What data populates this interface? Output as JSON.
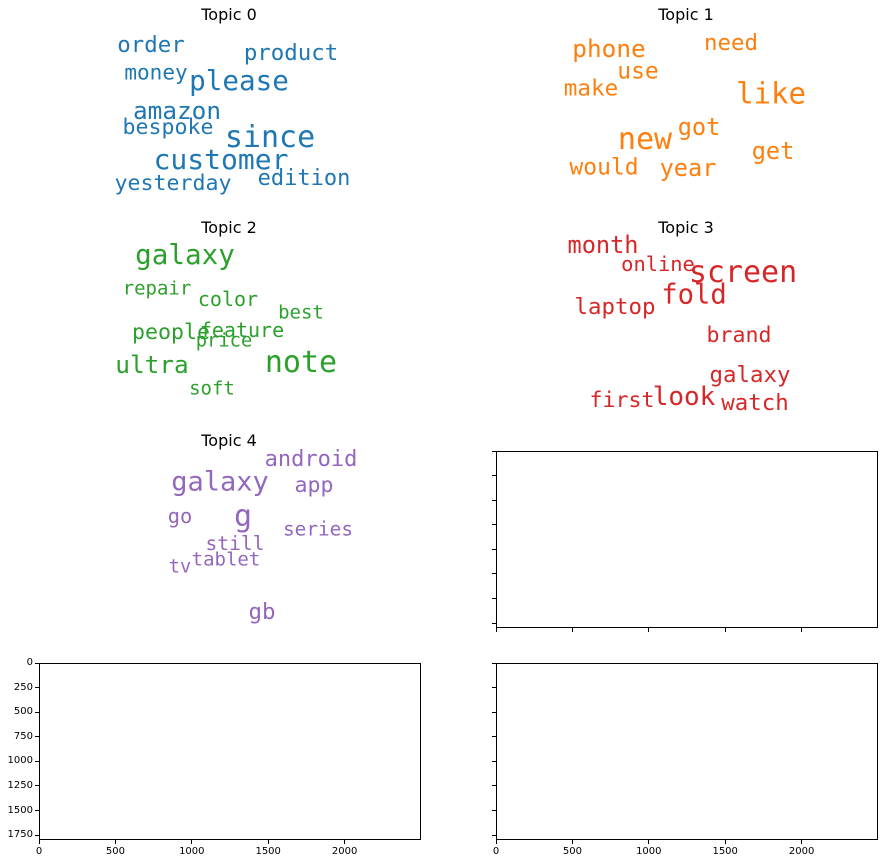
{
  "chart_data": [
    {
      "type": "wordcloud",
      "title": "Topic 0",
      "color": "#1f77b4",
      "words": [
        {
          "text": "order",
          "weight": 0.62
        },
        {
          "text": "product",
          "weight": 0.62
        },
        {
          "text": "money",
          "weight": 0.55
        },
        {
          "text": "please",
          "weight": 0.88
        },
        {
          "text": "amazon",
          "weight": 0.72
        },
        {
          "text": "bespoke",
          "weight": 0.58
        },
        {
          "text": "since",
          "weight": 1.0
        },
        {
          "text": "customer",
          "weight": 0.9
        },
        {
          "text": "yesterday",
          "weight": 0.58
        },
        {
          "text": "edition",
          "weight": 0.6
        }
      ]
    },
    {
      "type": "wordcloud",
      "title": "Topic 1",
      "color": "#ff7f0e",
      "words": [
        {
          "text": "phone",
          "weight": 0.72
        },
        {
          "text": "need",
          "weight": 0.62
        },
        {
          "text": "use",
          "weight": 0.65
        },
        {
          "text": "make",
          "weight": 0.63
        },
        {
          "text": "like",
          "weight": 0.95
        },
        {
          "text": "got",
          "weight": 0.68
        },
        {
          "text": "new",
          "weight": 1.0
        },
        {
          "text": "get",
          "weight": 0.68
        },
        {
          "text": "would",
          "weight": 0.65
        },
        {
          "text": "year",
          "weight": 0.68
        }
      ]
    },
    {
      "type": "wordcloud",
      "title": "Topic 2",
      "color": "#2ca02c",
      "words": [
        {
          "text": "galaxy",
          "weight": 0.88
        },
        {
          "text": "repair",
          "weight": 0.45
        },
        {
          "text": "color",
          "weight": 0.5
        },
        {
          "text": "best",
          "weight": 0.45
        },
        {
          "text": "people",
          "weight": 0.58
        },
        {
          "text": "feature",
          "weight": 0.5
        },
        {
          "text": "price",
          "weight": 0.44
        },
        {
          "text": "ultra",
          "weight": 0.72
        },
        {
          "text": "note",
          "weight": 1.0
        },
        {
          "text": "soft",
          "weight": 0.45
        }
      ]
    },
    {
      "type": "wordcloud",
      "title": "Topic 3",
      "color": "#d62728",
      "words": [
        {
          "text": "month",
          "weight": 0.68
        },
        {
          "text": "online",
          "weight": 0.52
        },
        {
          "text": "screen",
          "weight": 1.0
        },
        {
          "text": "fold",
          "weight": 0.86
        },
        {
          "text": "laptop",
          "weight": 0.62
        },
        {
          "text": "brand",
          "weight": 0.58
        },
        {
          "text": "galaxy",
          "weight": 0.62
        },
        {
          "text": "first",
          "weight": 0.58
        },
        {
          "text": "look",
          "weight": 0.8
        },
        {
          "text": "watch",
          "weight": 0.62
        }
      ]
    },
    {
      "type": "wordcloud",
      "title": "Topic 4",
      "color": "#9467bd",
      "words": [
        {
          "text": "android",
          "weight": 0.6
        },
        {
          "text": "galaxy",
          "weight": 0.85
        },
        {
          "text": "app",
          "weight": 0.58
        },
        {
          "text": "g",
          "weight": 1.0
        },
        {
          "text": "go",
          "weight": 0.52
        },
        {
          "text": "series",
          "weight": 0.47
        },
        {
          "text": "still",
          "weight": 0.48
        },
        {
          "text": "tablet",
          "weight": 0.45
        },
        {
          "text": "tv",
          "weight": 0.43
        },
        {
          "text": "gb",
          "weight": 0.62
        }
      ]
    },
    {
      "type": "empty",
      "title": "",
      "xlim": [
        0,
        2500
      ],
      "ylim": [
        1800,
        0
      ],
      "xticks": [
        0,
        500,
        1000,
        1500,
        2000
      ],
      "yticks": [
        0,
        250,
        500,
        750,
        1000,
        1250,
        1500,
        1750
      ],
      "show_xtick_labels": false,
      "show_ytick_labels": false
    },
    {
      "type": "empty",
      "title": "",
      "xlim": [
        0,
        2500
      ],
      "ylim": [
        1800,
        0
      ],
      "xticks": [
        0,
        500,
        1000,
        1500,
        2000
      ],
      "yticks": [
        0,
        250,
        500,
        750,
        1000,
        1250,
        1500,
        1750
      ],
      "show_xtick_labels": true,
      "show_ytick_labels": true
    },
    {
      "type": "empty",
      "title": "",
      "xlim": [
        0,
        2500
      ],
      "ylim": [
        1800,
        0
      ],
      "xticks": [
        0,
        500,
        1000,
        1500,
        2000
      ],
      "yticks": [
        0,
        250,
        500,
        750,
        1000,
        1250,
        1500,
        1750
      ],
      "show_xtick_labels": true,
      "show_ytick_labels": false
    }
  ]
}
